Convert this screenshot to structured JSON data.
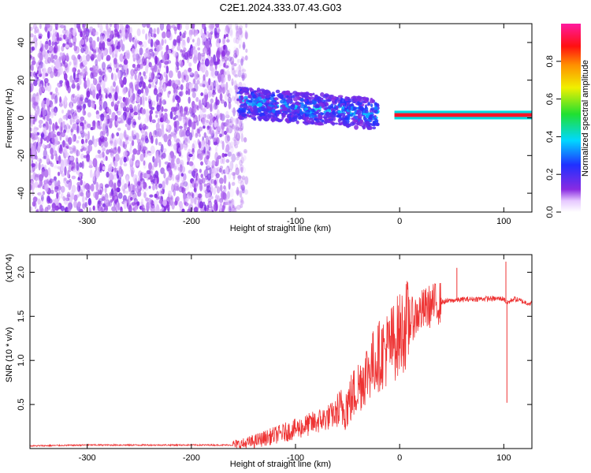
{
  "figure_title": "C2E1.2024.333.07.43.G03",
  "chart_data": [
    {
      "type": "heatmap",
      "title": "C2E1.2024.333.07.43.G03",
      "xlabel": "Height of straight line (km)",
      "ylabel": "Frequency (Hz)",
      "xlim": [
        -355,
        127
      ],
      "ylim": [
        -50,
        50
      ],
      "x_ticks": [
        -300,
        -200,
        -100,
        0,
        100
      ],
      "y_ticks": [
        -40,
        -20,
        0,
        20,
        40
      ],
      "colorbar": {
        "label": "Normalized spectral amplitude",
        "range": [
          0,
          1
        ],
        "ticks": [
          "0.0",
          "0.2",
          "0.4",
          "0.6",
          "0.8"
        ],
        "colormap": "rainbow (white-violet-blue-cyan-green-yellow-orange-red-magenta)"
      },
      "regions": [
        {
          "description": "broadband noise",
          "x_range": [
            -355,
            -155
          ],
          "freq_range": [
            -50,
            50
          ],
          "amplitude": 0.05
        },
        {
          "description": "signal band",
          "x_range": [
            -155,
            -20
          ],
          "freq_center_start": 8,
          "freq_center_end": 2,
          "amplitude": 0.3
        },
        {
          "description": "strong carrier",
          "x_range": [
            -5,
            127
          ],
          "freq_center": 1.5,
          "amplitude": 0.9
        }
      ],
      "legend": "colorbar-right"
    },
    {
      "type": "line",
      "xlabel": "Height of straight line (km)",
      "ylabel": "SNR (10 * v/v)",
      "y_multiplier": "(x10^4)",
      "xlim": [
        -355,
        127
      ],
      "ylim": [
        0,
        2.2
      ],
      "x_ticks": [
        -300,
        -200,
        -100,
        0,
        100
      ],
      "y_ticks": [
        "0.5",
        "1.0",
        "1.5",
        "2.0"
      ],
      "series": [
        {
          "color": "#ee3333",
          "x": [
            -355,
            -300,
            -250,
            -200,
            -160,
            -150,
            -140,
            -120,
            -100,
            -80,
            -60,
            -50,
            -40,
            -30,
            -20,
            -10,
            0,
            10,
            20,
            30,
            40,
            50,
            60,
            80,
            95,
            100,
            103,
            110,
            120,
            127
          ],
          "y": [
            0.03,
            0.04,
            0.04,
            0.04,
            0.04,
            0.05,
            0.08,
            0.15,
            0.22,
            0.3,
            0.4,
            0.5,
            0.7,
            0.9,
            1.05,
            1.15,
            1.3,
            1.45,
            1.55,
            1.62,
            1.66,
            1.68,
            1.69,
            1.7,
            1.7,
            1.7,
            1.65,
            1.7,
            1.66,
            1.64
          ]
        }
      ],
      "spikes": [
        {
          "x": 55,
          "y": 2.05
        },
        {
          "x": 102,
          "y": 2.12
        },
        {
          "x": 103,
          "y": 0.52
        }
      ]
    }
  ]
}
